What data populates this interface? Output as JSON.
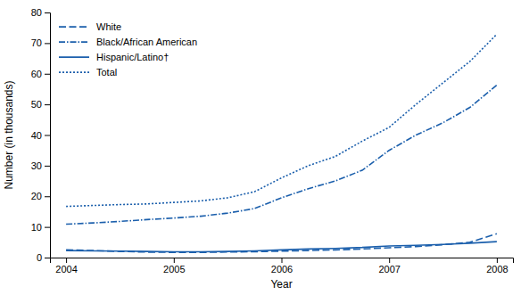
{
  "chart_data": {
    "type": "line",
    "xlabel": "Year",
    "ylabel": "Number (in thousands)",
    "x": [
      2004,
      2004.25,
      2004.5,
      2004.75,
      2005,
      2005.25,
      2005.5,
      2005.75,
      2006,
      2006.25,
      2006.5,
      2006.75,
      2007,
      2007.25,
      2007.5,
      2007.75,
      2008
    ],
    "series": [
      {
        "name": "White",
        "color": "#1b5fac",
        "line_style": "dashed",
        "values": [
          2.5,
          2.3,
          2.0,
          1.8,
          1.7,
          1.7,
          1.8,
          1.9,
          2.1,
          2.3,
          2.5,
          2.8,
          3.2,
          3.6,
          4.2,
          5.0,
          7.8
        ]
      },
      {
        "name": "Black/African American",
        "color": "#1b5fac",
        "line_style": "dashdot",
        "values": [
          10.9,
          11.3,
          11.8,
          12.4,
          12.9,
          13.5,
          14.5,
          16.0,
          19.5,
          22.5,
          25.0,
          28.5,
          35.0,
          40.0,
          44.0,
          49.0,
          56.3
        ]
      },
      {
        "name": "Hispanic/Latino†",
        "color": "#1b5fac",
        "line_style": "solid",
        "values": [
          2.3,
          2.2,
          2.1,
          2.0,
          1.9,
          1.9,
          2.0,
          2.2,
          2.5,
          2.8,
          3.0,
          3.3,
          3.8,
          4.0,
          4.3,
          4.7,
          5.2
        ]
      },
      {
        "name": "Total",
        "color": "#1b5fac",
        "line_style": "dotted",
        "values": [
          16.7,
          17.0,
          17.3,
          17.5,
          18.0,
          18.5,
          19.5,
          21.5,
          26.0,
          30.0,
          33.0,
          38.0,
          42.5,
          50.0,
          57.0,
          64.0,
          72.9
        ]
      }
    ],
    "xlim": [
      2003.85,
      2008.15
    ],
    "xticks": [
      2004,
      2005,
      2006,
      2007,
      2008
    ],
    "ylim": [
      0,
      80
    ],
    "yticks": [
      0,
      10,
      20,
      30,
      40,
      50,
      60,
      70,
      80
    ],
    "legend": "upper left",
    "grid": false
  }
}
